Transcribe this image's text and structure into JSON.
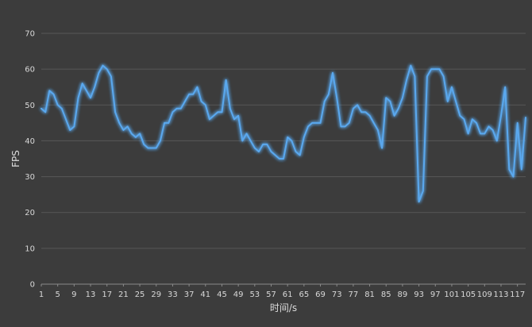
{
  "chart_data": {
    "type": "line",
    "xlabel": "时间/s",
    "ylabel": "FPS",
    "ylim": [
      0,
      70
    ],
    "yticks": [
      0,
      10,
      20,
      30,
      40,
      50,
      60,
      70
    ],
    "xlim": [
      1,
      119
    ],
    "xticks": [
      1,
      5,
      9,
      13,
      17,
      21,
      25,
      29,
      33,
      37,
      41,
      45,
      49,
      53,
      57,
      61,
      65,
      69,
      73,
      77,
      81,
      85,
      89,
      93,
      97,
      101,
      105,
      109,
      113,
      117
    ],
    "grid": "horizontal",
    "line_color": "#5aa8ee",
    "background": "#3c3c3c",
    "series": [
      {
        "x": [
          1,
          2,
          3,
          4,
          5,
          6,
          7,
          8,
          9,
          10,
          11,
          12,
          13,
          14,
          15,
          16,
          17,
          18,
          19,
          20,
          21,
          22,
          23,
          24,
          25,
          26,
          27,
          28,
          29,
          30,
          31,
          32,
          33,
          34,
          35,
          36,
          37,
          38,
          39,
          40,
          41,
          42,
          43,
          44,
          45,
          46,
          47,
          48,
          49,
          50,
          51,
          52,
          53,
          54,
          55,
          56,
          57,
          58,
          59,
          60,
          61,
          62,
          63,
          64,
          65,
          66,
          67,
          68,
          69,
          70,
          71,
          72,
          73,
          74,
          75,
          76,
          77,
          78,
          79,
          80,
          81,
          82,
          83,
          84,
          85,
          86,
          87,
          88,
          89,
          90,
          91,
          92,
          93,
          94,
          95,
          96,
          97,
          98,
          99,
          100,
          101,
          102,
          103,
          104,
          105,
          106,
          107,
          108,
          109,
          110,
          111,
          112,
          113,
          114,
          115,
          116,
          117,
          118,
          119
        ],
        "values": [
          49,
          48,
          54,
          53,
          50,
          49,
          46,
          43,
          44,
          52,
          56,
          54,
          52,
          55,
          59,
          61,
          60,
          58,
          48,
          45,
          43,
          44,
          42,
          41,
          42,
          39,
          38,
          38,
          38,
          40,
          45,
          45,
          48,
          49,
          49,
          51,
          53,
          53,
          55,
          51,
          50,
          46,
          47,
          48,
          48,
          57,
          49,
          46,
          47,
          40,
          42,
          40,
          38,
          37,
          39,
          39,
          37,
          36,
          35,
          35,
          41,
          40,
          37,
          36,
          41,
          44,
          45,
          45,
          45,
          51,
          53,
          59,
          52,
          44,
          44,
          45,
          49,
          50,
          48,
          48,
          47,
          45,
          43,
          38,
          52,
          51,
          47,
          49,
          52,
          57,
          61,
          58,
          23,
          26,
          58,
          60,
          60,
          60,
          58,
          51,
          55,
          51,
          47,
          46,
          42,
          46,
          45,
          42,
          42,
          44,
          43,
          40,
          47,
          55,
          32,
          30,
          45,
          32,
          46.5
        ]
      }
    ]
  }
}
